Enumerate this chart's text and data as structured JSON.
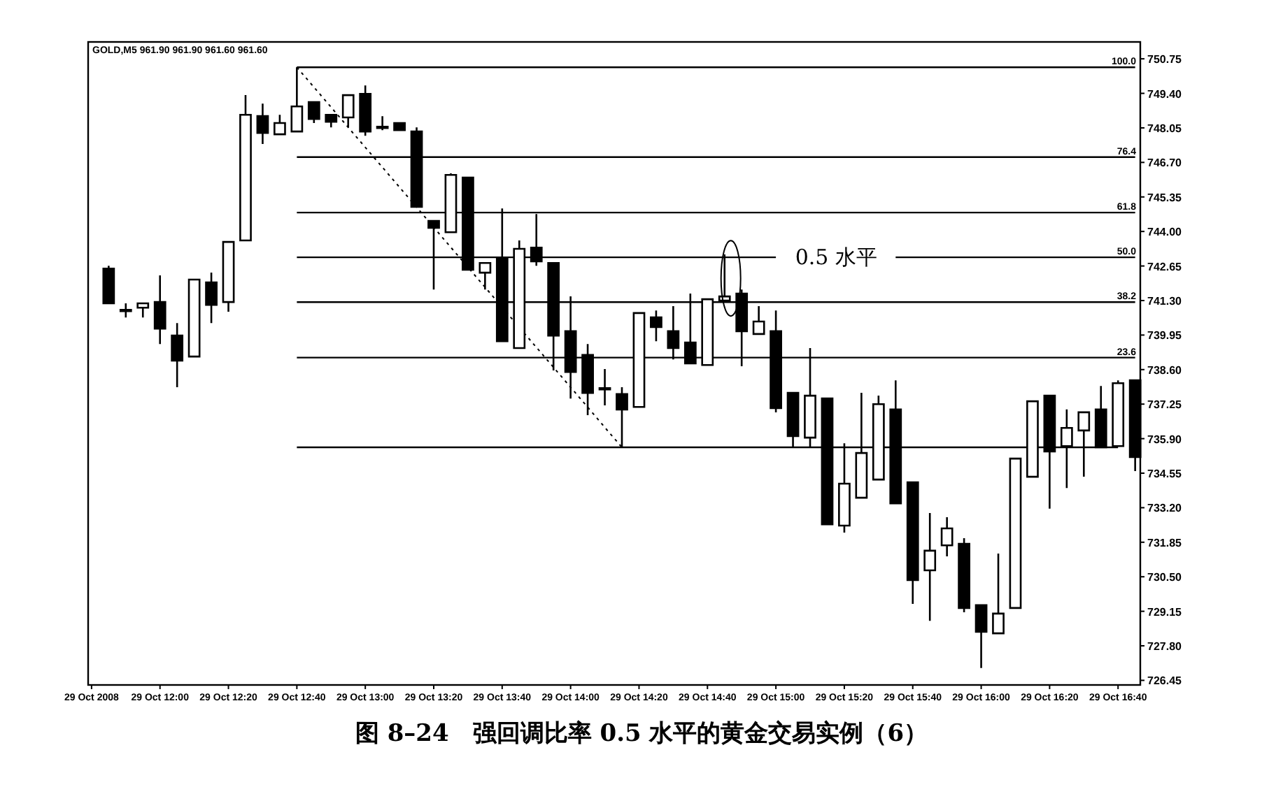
{
  "chart_data": {
    "type": "candlestick",
    "title": "图 8–24　强回调比率 0.5 水平的黄金交易实例（6）",
    "subtitle": "GOLD,M5  961.90 961.90 961.60 961.60",
    "categories": [
      "29 Oct 2008",
      null,
      null,
      null,
      "29 Oct 12:00",
      null,
      null,
      null,
      "29 Oct 12:20",
      null,
      null,
      null,
      "29 Oct 12:40",
      null,
      null,
      null,
      "29 Oct 13:00",
      null,
      null,
      null,
      "29 Oct 13:20",
      null,
      null,
      null,
      "29 Oct 13:40",
      null,
      null,
      null,
      "29 Oct 14:00",
      null,
      null,
      null,
      "29 Oct 14:20",
      null,
      null,
      null,
      "29 Oct 14:40",
      null,
      null,
      null,
      "29 Oct 15:00",
      null,
      null,
      null,
      "29 Oct 15:20",
      null,
      null,
      null,
      "29 Oct 15:40",
      null,
      null,
      null,
      "29 Oct 16:00",
      null,
      null,
      null,
      "29 Oct 16:20",
      null,
      null,
      null,
      "29 Oct 16:40",
      null
    ],
    "ohlc": [
      null,
      [
        742.55,
        742.66,
        741.19,
        741.19
      ],
      [
        740.91,
        741.19,
        740.64,
        740.91
      ],
      [
        741.02,
        741.19,
        740.64,
        741.19
      ],
      [
        741.24,
        742.28,
        739.6,
        740.2
      ],
      [
        739.93,
        740.42,
        737.91,
        738.95
      ],
      [
        739.11,
        742.12,
        739.11,
        742.12
      ],
      [
        742.01,
        742.39,
        740.42,
        741.13
      ],
      [
        741.24,
        743.59,
        740.86,
        743.59
      ],
      [
        743.65,
        749.33,
        743.65,
        748.56
      ],
      [
        748.51,
        749.0,
        747.42,
        747.85
      ],
      [
        747.8,
        748.56,
        747.8,
        748.24
      ],
      [
        747.91,
        750.42,
        747.91,
        748.89
      ],
      [
        749.06,
        749.06,
        748.24,
        748.4
      ],
      [
        748.56,
        748.56,
        748.07,
        748.29
      ],
      [
        748.46,
        749.33,
        748.07,
        749.33
      ],
      [
        749.38,
        749.71,
        747.74,
        747.91
      ],
      [
        748.07,
        748.51,
        747.96,
        748.07
      ],
      [
        748.24,
        748.24,
        747.96,
        747.96
      ],
      [
        747.91,
        748.07,
        744.96,
        744.96
      ],
      [
        744.41,
        744.41,
        741.73,
        744.14
      ],
      [
        743.97,
        746.27,
        743.97,
        746.21
      ],
      [
        746.11,
        746.11,
        742.5,
        742.5
      ],
      [
        742.39,
        742.77,
        741.73,
        742.77
      ],
      [
        742.94,
        744.9,
        739.71,
        739.71
      ],
      [
        739.44,
        743.65,
        739.44,
        743.32
      ],
      [
        743.37,
        744.68,
        742.66,
        742.83
      ],
      [
        742.77,
        742.77,
        738.57,
        739.93
      ],
      [
        740.1,
        741.46,
        737.47,
        738.51
      ],
      [
        739.17,
        739.6,
        736.82,
        737.69
      ],
      [
        737.85,
        738.62,
        737.2,
        737.85
      ],
      [
        737.64,
        737.91,
        735.56,
        737.04
      ],
      [
        737.14,
        740.81,
        737.14,
        740.81
      ],
      [
        740.64,
        740.91,
        739.71,
        740.26
      ],
      [
        740.1,
        741.08,
        739.0,
        739.44
      ],
      [
        739.66,
        741.57,
        738.84,
        738.84
      ],
      [
        738.78,
        741.35,
        738.78,
        741.35
      ],
      [
        741.3,
        743.1,
        741.3,
        741.46
      ],
      [
        741.57,
        741.73,
        738.73,
        740.1
      ],
      [
        739.99,
        741.08,
        739.99,
        740.48
      ],
      [
        740.1,
        740.91,
        736.93,
        737.09
      ],
      [
        737.69,
        737.69,
        735.56,
        736.0
      ],
      [
        735.94,
        739.44,
        735.56,
        737.58
      ],
      [
        737.47,
        737.47,
        732.55,
        732.55
      ],
      [
        732.5,
        735.72,
        732.23,
        734.14
      ],
      [
        733.59,
        737.69,
        733.59,
        735.34
      ],
      [
        734.3,
        737.58,
        734.3,
        737.25
      ],
      [
        737.04,
        738.18,
        733.37,
        733.37
      ],
      [
        734.19,
        734.19,
        729.44,
        730.37
      ],
      [
        730.75,
        732.99,
        728.78,
        731.52
      ],
      [
        731.73,
        732.83,
        731.3,
        732.39
      ],
      [
        731.79,
        732.01,
        729.11,
        729.28
      ],
      [
        729.39,
        729.39,
        726.93,
        728.35
      ],
      [
        728.29,
        731.41,
        728.29,
        729.06
      ],
      [
        729.28,
        735.12,
        729.28,
        735.12
      ],
      [
        734.41,
        737.36,
        734.41,
        737.36
      ],
      [
        737.58,
        737.58,
        733.16,
        735.4
      ],
      [
        735.61,
        737.04,
        733.97,
        736.32
      ],
      [
        736.22,
        736.93,
        734.41,
        736.93
      ],
      [
        737.04,
        737.96,
        735.56,
        735.56
      ],
      [
        735.61,
        738.18,
        735.61,
        738.07
      ],
      [
        738.18,
        738.18,
        734.63,
        735.18
      ]
    ],
    "series": [
      {
        "type": "line",
        "color": "#000000",
        "values": [
          null,
          null,
          null,
          null,
          null,
          null,
          null,
          null,
          null,
          null,
          null,
          null,
          750.42,
          750.42,
          750.42,
          750.42,
          750.42,
          750.42,
          750.42,
          750.42,
          750.42,
          750.42,
          750.42,
          750.42,
          750.42,
          750.42,
          750.42,
          750.42,
          750.42,
          750.42,
          750.42,
          750.42,
          750.42,
          750.42,
          750.42,
          750.42,
          750.42,
          750.42,
          750.42,
          750.42,
          750.42,
          750.42,
          750.42,
          750.42,
          750.42,
          750.42,
          750.42,
          750.42,
          750.42,
          750.42,
          750.42,
          750.42,
          750.42,
          750.42,
          750.42,
          750.42,
          750.42,
          750.42,
          750.42,
          750.42,
          750.42,
          750.42
        ]
      },
      {
        "type": "line",
        "color": "#000000",
        "values": [
          null,
          null,
          null,
          null,
          null,
          null,
          null,
          null,
          null,
          null,
          null,
          null,
          746.91,
          746.91,
          746.91,
          746.91,
          746.91,
          746.91,
          746.91,
          746.91,
          746.91,
          746.91,
          746.91,
          746.91,
          746.91,
          746.91,
          746.91,
          746.91,
          746.91,
          746.91,
          746.91,
          746.91,
          746.91,
          746.91,
          746.91,
          746.91,
          746.91,
          746.91,
          746.91,
          746.91,
          746.91,
          746.91,
          746.91,
          746.91,
          746.91,
          746.91,
          746.91,
          746.91,
          746.91,
          746.91,
          746.91,
          746.91,
          746.91,
          746.91,
          746.91,
          746.91,
          746.91,
          746.91,
          746.91,
          746.91,
          746.91,
          746.91
        ]
      },
      {
        "type": "line",
        "color": "#000000",
        "values": [
          null,
          null,
          null,
          null,
          null,
          null,
          null,
          null,
          null,
          null,
          null,
          null,
          744.74,
          744.74,
          744.74,
          744.74,
          744.74,
          744.74,
          744.74,
          744.74,
          744.74,
          744.74,
          744.74,
          744.74,
          744.74,
          744.74,
          744.74,
          744.74,
          744.74,
          744.74,
          744.74,
          744.74,
          744.74,
          744.74,
          744.74,
          744.74,
          744.74,
          744.74,
          744.74,
          744.74,
          744.74,
          744.74,
          744.74,
          744.74,
          744.74,
          744.74,
          744.74,
          744.74,
          744.74,
          744.74,
          744.74,
          744.74,
          744.74,
          744.74,
          744.74,
          744.74,
          744.74,
          744.74,
          744.74,
          744.74,
          744.74,
          744.74
        ]
      },
      {
        "type": "line",
        "color": "#000000",
        "values": [
          null,
          null,
          null,
          null,
          null,
          null,
          null,
          null,
          null,
          null,
          null,
          null,
          742.99,
          742.99,
          742.99,
          742.99,
          742.99,
          742.99,
          742.99,
          742.99,
          742.99,
          742.99,
          742.99,
          742.99,
          742.99,
          742.99,
          742.99,
          742.99,
          742.99,
          742.99,
          742.99,
          742.99,
          742.99,
          742.99,
          742.99,
          742.99,
          742.99,
          742.99,
          742.99,
          742.99,
          742.99,
          null,
          null,
          null,
          null,
          null,
          null,
          742.99,
          742.99,
          742.99,
          742.99,
          742.99,
          742.99,
          742.99,
          742.99,
          742.99,
          742.99,
          742.99,
          742.99,
          742.99,
          742.99,
          742.99
        ]
      },
      {
        "type": "line",
        "color": "#000000",
        "values": [
          null,
          null,
          null,
          null,
          null,
          null,
          null,
          null,
          null,
          null,
          null,
          null,
          741.24,
          741.24,
          741.24,
          741.24,
          741.24,
          741.24,
          741.24,
          741.24,
          741.24,
          741.24,
          741.24,
          741.24,
          741.24,
          741.24,
          741.24,
          741.24,
          741.24,
          741.24,
          741.24,
          741.24,
          741.24,
          741.24,
          741.24,
          741.24,
          741.24,
          741.24,
          741.24,
          741.24,
          741.24,
          741.24,
          741.24,
          741.24,
          741.24,
          741.24,
          741.24,
          741.24,
          741.24,
          741.24,
          741.24,
          741.24,
          741.24,
          741.24,
          741.24,
          741.24,
          741.24,
          741.24,
          741.24,
          741.24,
          741.24,
          741.24
        ]
      },
      {
        "type": "line",
        "color": "#000000",
        "values": [
          null,
          null,
          null,
          null,
          null,
          null,
          null,
          null,
          null,
          null,
          null,
          null,
          739.07,
          739.07,
          739.07,
          739.07,
          739.07,
          739.07,
          739.07,
          739.07,
          739.07,
          739.07,
          739.07,
          739.07,
          739.07,
          739.07,
          739.07,
          739.07,
          739.07,
          739.07,
          739.07,
          739.07,
          739.07,
          739.07,
          739.07,
          739.07,
          739.07,
          739.07,
          739.07,
          739.07,
          739.07,
          739.07,
          739.07,
          739.07,
          739.07,
          739.07,
          739.07,
          739.07,
          739.07,
          739.07,
          739.07,
          739.07,
          739.07,
          739.07,
          739.07,
          739.07,
          739.07,
          739.07,
          739.07,
          739.07,
          739.07,
          739.07
        ]
      },
      {
        "type": "line",
        "color": "#000000",
        "values": [
          null,
          null,
          null,
          null,
          null,
          null,
          null,
          null,
          null,
          null,
          null,
          null,
          735.56,
          735.56,
          735.56,
          735.56,
          735.56,
          735.56,
          735.56,
          735.56,
          735.56,
          735.56,
          735.56,
          735.56,
          735.56,
          735.56,
          735.56,
          735.56,
          735.56,
          735.56,
          735.56,
          735.56,
          735.56,
          735.56,
          735.56,
          735.56,
          735.56,
          735.56,
          735.56,
          735.56,
          735.56,
          735.56,
          735.56,
          735.56,
          735.56,
          735.56,
          735.56,
          735.56,
          735.56,
          735.56,
          735.56,
          735.56,
          735.56,
          735.56,
          735.56,
          735.56,
          735.56,
          735.56,
          735.56,
          735.56,
          735.56,
          null
        ]
      },
      {
        "type": "line",
        "color": "#000000",
        "line_style": "dotted",
        "values": [
          null,
          null,
          null,
          null,
          null,
          null,
          null,
          null,
          null,
          null,
          null,
          null,
          750.42,
          749.64,
          748.86,
          748.07,
          747.29,
          746.51,
          745.73,
          744.95,
          744.16,
          743.38,
          742.6,
          741.82,
          741.04,
          740.25,
          739.47,
          738.69,
          737.91,
          737.13,
          736.34,
          735.56,
          null,
          null,
          null,
          null,
          null,
          null,
          null,
          null,
          null,
          null,
          null,
          null,
          null,
          null,
          null,
          null,
          null,
          null,
          null,
          null,
          null,
          null,
          null,
          null,
          null,
          null,
          null,
          null,
          null,
          null
        ]
      }
    ],
    "annotations": [
      "0.5 水平",
      {
        "text": "100.0",
        "y": 750.42
      },
      {
        "text": "76.4",
        "y": 746.91
      },
      {
        "text": "61.8",
        "y": 744.74
      },
      {
        "text": "50.0",
        "y": 742.99
      },
      {
        "text": "38.2",
        "y": 741.24
      },
      {
        "text": "23.6",
        "y": 739.07
      }
    ],
    "ylim": [
      726.27,
      751.41
    ],
    "yticks": [
      {
        "value": 750.75,
        "label": "750.75"
      },
      {
        "value": 749.4,
        "label": "749.40"
      },
      {
        "value": 748.05,
        "label": "748.05"
      },
      {
        "value": 746.7,
        "label": "746.70"
      },
      {
        "value": 745.35,
        "label": "745.35"
      },
      {
        "value": 744.0,
        "label": "744.00"
      },
      {
        "value": 742.65,
        "label": "742.65"
      },
      {
        "value": 741.3,
        "label": "741.30"
      },
      {
        "value": 739.95,
        "label": "739.95"
      },
      {
        "value": 738.6,
        "label": "738.60"
      },
      {
        "value": 737.25,
        "label": "737.25"
      },
      {
        "value": 735.9,
        "label": "735.90"
      },
      {
        "value": 734.55,
        "label": "734.55"
      },
      {
        "value": 733.2,
        "label": "733.20"
      },
      {
        "value": 731.85,
        "label": "731.85"
      },
      {
        "value": 730.5,
        "label": "730.50"
      },
      {
        "value": 729.15,
        "label": "729.15"
      },
      {
        "value": 727.8,
        "label": "727.80"
      },
      {
        "value": 726.45,
        "label": "726.45"
      }
    ]
  }
}
